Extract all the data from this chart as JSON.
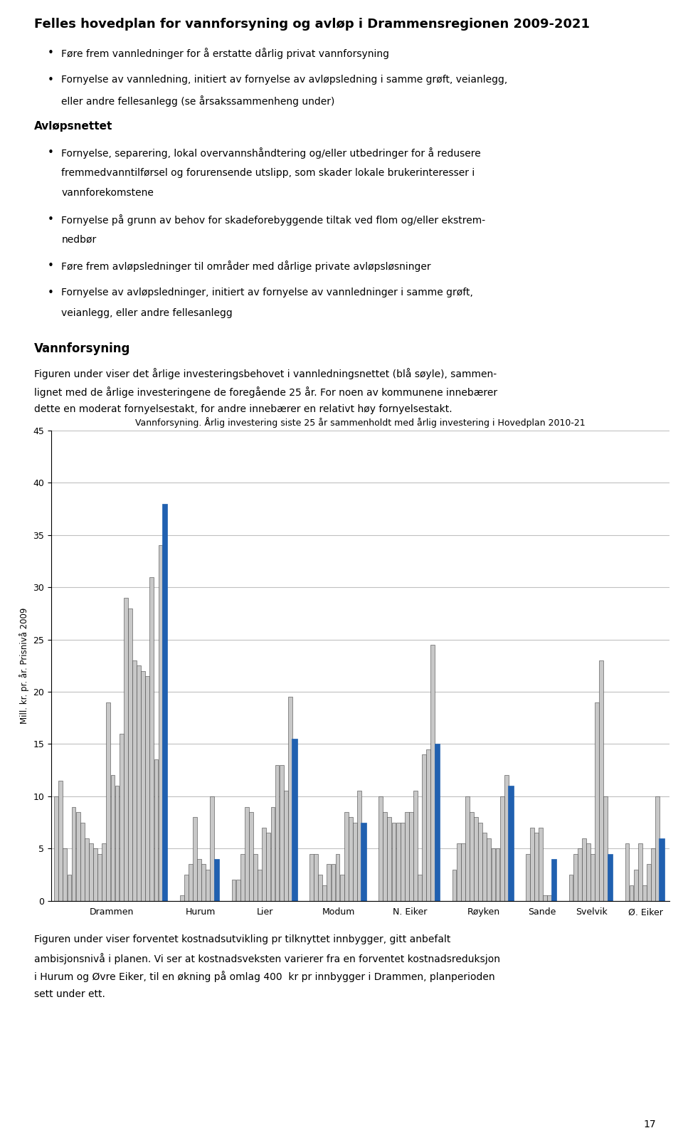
{
  "title": "Vannforsyning. Årlig investering siste 25 år sammenholdt med årlig investering i Hovedplan 2010-21",
  "ylabel": "Mill. kr. pr. år. Prisnivå 2009",
  "ylim": [
    0,
    45
  ],
  "yticks": [
    0,
    5,
    10,
    15,
    20,
    25,
    30,
    35,
    40,
    45
  ],
  "municipalities": [
    "Drammen",
    "Hurum",
    "Lier",
    "Modum",
    "N. Eiker",
    "Røyken",
    "Sande",
    "Svelvik",
    "Ø. Eiker"
  ],
  "groups": [
    {
      "name": "Drammen",
      "historical": [
        10.0,
        11.5,
        5.0,
        2.5,
        9.0,
        8.5,
        7.5,
        6.0,
        5.5,
        5.0,
        4.5,
        5.5,
        19.0,
        12.0,
        11.0,
        16.0,
        29.0,
        28.0,
        23.0,
        22.5,
        22.0,
        21.5,
        31.0,
        13.5,
        34.0
      ],
      "planned": 38.0
    },
    {
      "name": "Hurum",
      "historical": [
        0.5,
        2.5,
        3.5,
        8.0,
        4.0,
        3.5,
        3.0,
        10.0
      ],
      "planned": 4.0
    },
    {
      "name": "Lier",
      "historical": [
        2.0,
        2.0,
        4.5,
        9.0,
        8.5,
        4.5,
        3.0,
        7.0,
        6.5,
        9.0,
        13.0,
        13.0,
        10.5,
        19.5
      ],
      "planned": 15.5
    },
    {
      "name": "Modum",
      "historical": [
        4.5,
        4.5,
        2.5,
        1.5,
        3.5,
        3.5,
        4.5,
        2.5,
        8.5,
        8.0,
        7.5,
        10.5
      ],
      "planned": 7.5
    },
    {
      "name": "N. Eiker",
      "historical": [
        10.0,
        8.5,
        8.0,
        7.5,
        7.5,
        7.5,
        8.5,
        8.5,
        10.5,
        2.5,
        14.0,
        14.5,
        24.5
      ],
      "planned": 15.0
    },
    {
      "name": "Røyken",
      "historical": [
        3.0,
        5.5,
        5.5,
        10.0,
        8.5,
        8.0,
        7.5,
        6.5,
        6.0,
        5.0,
        5.0,
        10.0,
        12.0
      ],
      "planned": 11.0
    },
    {
      "name": "Sande",
      "historical": [
        4.5,
        7.0,
        6.5,
        7.0,
        0.5,
        0.5
      ],
      "planned": 4.0
    },
    {
      "name": "Svelvik",
      "historical": [
        2.5,
        4.5,
        5.0,
        6.0,
        5.5,
        4.5,
        19.0,
        23.0,
        10.0
      ],
      "planned": 4.5
    },
    {
      "name": "Ø. Eiker",
      "historical": [
        5.5,
        1.5,
        3.0,
        5.5,
        1.5,
        3.5,
        5.0,
        10.0
      ],
      "planned": 6.0
    }
  ],
  "bar_color_historical": "#c8c8c8",
  "bar_color_planned": "#2060b0",
  "bar_edge_color_historical": "#444444",
  "background_color": "#ffffff",
  "grid_color": "#c0c0c0",
  "title_fontsize": 9.0,
  "label_fontsize": 8.5,
  "tick_fontsize": 9.0,
  "page_title": "Felles hovedplan for vannforsyning og avløp i Drammensregionen 2009-2021",
  "page_number": "17"
}
